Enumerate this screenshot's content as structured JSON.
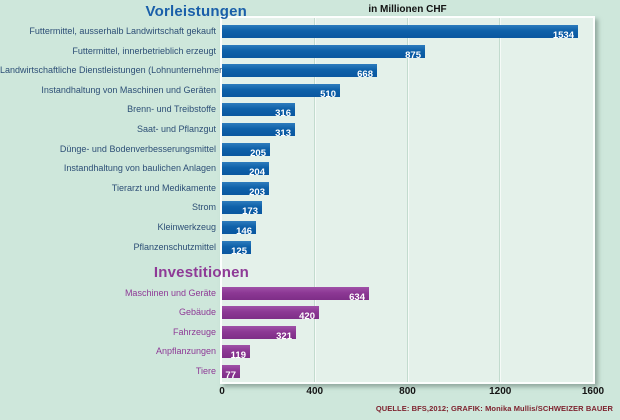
{
  "chart_data": {
    "type": "bar",
    "orientation": "horizontal",
    "unit": "in Millionen CHF",
    "x_axis": {
      "min": 0,
      "max": 1600,
      "ticks": [
        0,
        400,
        800,
        1200,
        1600
      ],
      "gridlines": [
        400,
        800,
        1200
      ]
    },
    "legend_position": "none",
    "sections": [
      {
        "name": "Vorleistungen",
        "title_color": "#1a5fa9",
        "label_color": "#2d4f76",
        "bar_color": "#0e61a9",
        "items": [
          {
            "label": "Futtermittel, ausserhalb Landwirtschaft gekauft",
            "value": 1534
          },
          {
            "label": "Futtermittel, innerbetrieblich erzeugt",
            "value": 875
          },
          {
            "label": "Landwirtschaftliche Dienstleistungen (Lohnunternehmer)",
            "value": 668
          },
          {
            "label": "Instandhaltung von Maschinen und Geräten",
            "value": 510
          },
          {
            "label": "Brenn- und Treibstoffe",
            "value": 316
          },
          {
            "label": "Saat- und Pflanzgut",
            "value": 313
          },
          {
            "label": "Dünge- und Bodenverbesserungsmittel",
            "value": 205
          },
          {
            "label": "Instandhaltung von baulichen Anlagen",
            "value": 204
          },
          {
            "label": "Tierarzt und Medikamente",
            "value": 203
          },
          {
            "label": "Strom",
            "value": 173
          },
          {
            "label": "Kleinwerkzeug",
            "value": 146
          },
          {
            "label": "Pflanzenschutzmittel",
            "value": 125
          }
        ]
      },
      {
        "name": "Investitionen",
        "title_color": "#8e3a96",
        "label_color": "#8e3a96",
        "bar_color": "#8c3894",
        "items": [
          {
            "label": "Maschinen und Geräte",
            "value": 634
          },
          {
            "label": "Gebäude",
            "value": 420
          },
          {
            "label": "Fahrzeuge",
            "value": 321
          },
          {
            "label": "Anpflanzungen",
            "value": 119
          },
          {
            "label": "Tiere",
            "value": 77
          }
        ]
      }
    ],
    "source": "QUELLE: BFS,2012; GRAFIK: Monika Mullis/SCHWEIZER BAUER",
    "colors": {
      "background": "#cee7db",
      "plot_background": "#e4f1ea",
      "blue_bar": "#0e61a9",
      "purple_bar": "#8c3894",
      "source_text": "#7e232f"
    }
  }
}
